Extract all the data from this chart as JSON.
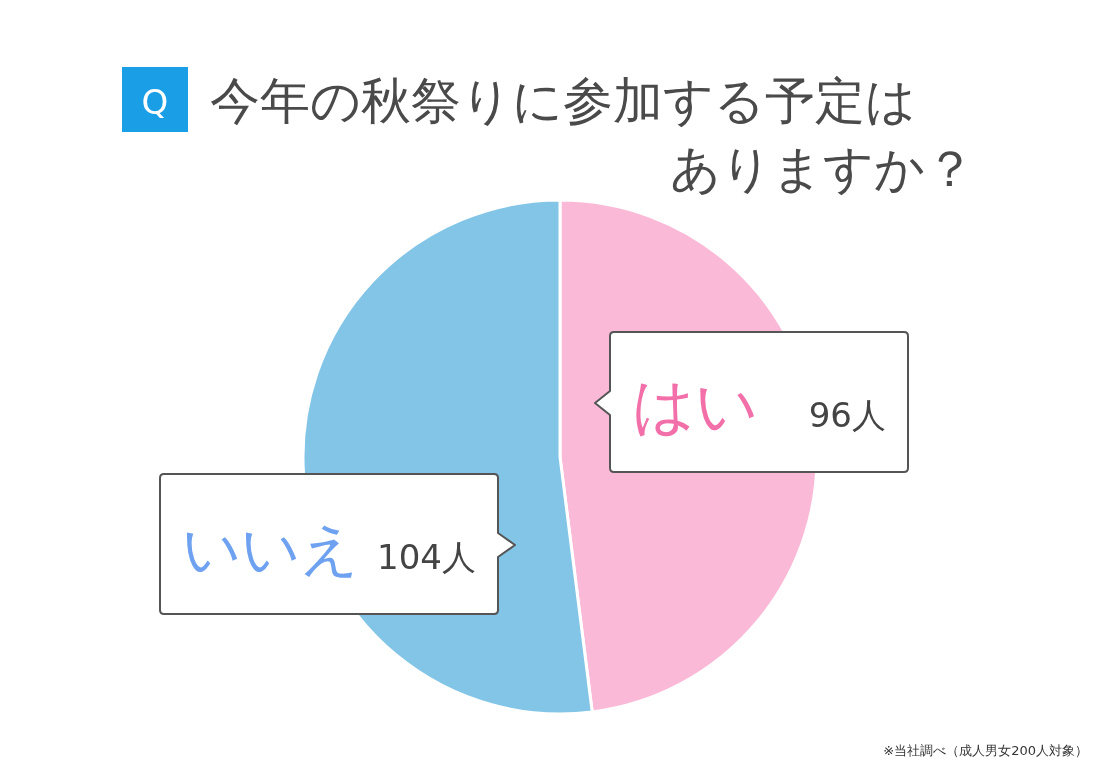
{
  "chart_data": {
    "type": "pie",
    "title": "今年の秋祭りに参加する予定はありますか？",
    "categories": [
      "はい",
      "いいえ"
    ],
    "values": [
      96,
      104
    ],
    "colors": [
      "#fbb9d8",
      "#82c5e7"
    ],
    "value_labels": [
      "96人",
      "104人"
    ],
    "annotations": [
      "Q",
      "※当社調べ（成人男女200人対象）"
    ]
  }
}
